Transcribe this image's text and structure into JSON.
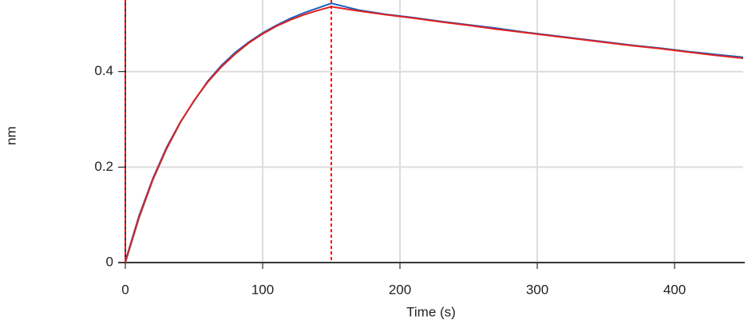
{
  "chart_data": {
    "type": "line",
    "x_label": "Time (s)",
    "y_label": "nm",
    "x": [
      0,
      10,
      20,
      30,
      40,
      50,
      60,
      70,
      80,
      90,
      100,
      110,
      120,
      130,
      140,
      150,
      170,
      190,
      210,
      230,
      250,
      270,
      290,
      310,
      330,
      350,
      370,
      390,
      410,
      430,
      450
    ],
    "series": [
      {
        "color": "#1f5fbf",
        "values": [
          0.003,
          0.098,
          0.176,
          0.241,
          0.294,
          0.338,
          0.38,
          0.413,
          0.44,
          0.462,
          0.481,
          0.497,
          0.511,
          0.523,
          0.533,
          0.543,
          0.529,
          0.52,
          0.513,
          0.505,
          0.498,
          0.491,
          0.483,
          0.476,
          0.469,
          0.462,
          0.455,
          0.449,
          0.442,
          0.436,
          0.43
        ]
      },
      {
        "color": "#e02020",
        "values": [
          0,
          0.094,
          0.173,
          0.238,
          0.293,
          0.339,
          0.378,
          0.41,
          0.437,
          0.46,
          0.479,
          0.495,
          0.508,
          0.519,
          0.528,
          0.536,
          0.527,
          0.519,
          0.512,
          0.504,
          0.497,
          0.489,
          0.482,
          0.475,
          0.468,
          0.461,
          0.454,
          0.448,
          0.441,
          0.434,
          0.428
        ]
      }
    ],
    "vlines": [
      0,
      150
    ],
    "vline_color": "#e02020",
    "xlim": [
      0,
      450
    ],
    "xticks": [
      0,
      100,
      200,
      300,
      400
    ],
    "ylim": [
      0,
      0.55
    ],
    "yticks": [
      0,
      0.2,
      0.4
    ],
    "grid": true
  }
}
